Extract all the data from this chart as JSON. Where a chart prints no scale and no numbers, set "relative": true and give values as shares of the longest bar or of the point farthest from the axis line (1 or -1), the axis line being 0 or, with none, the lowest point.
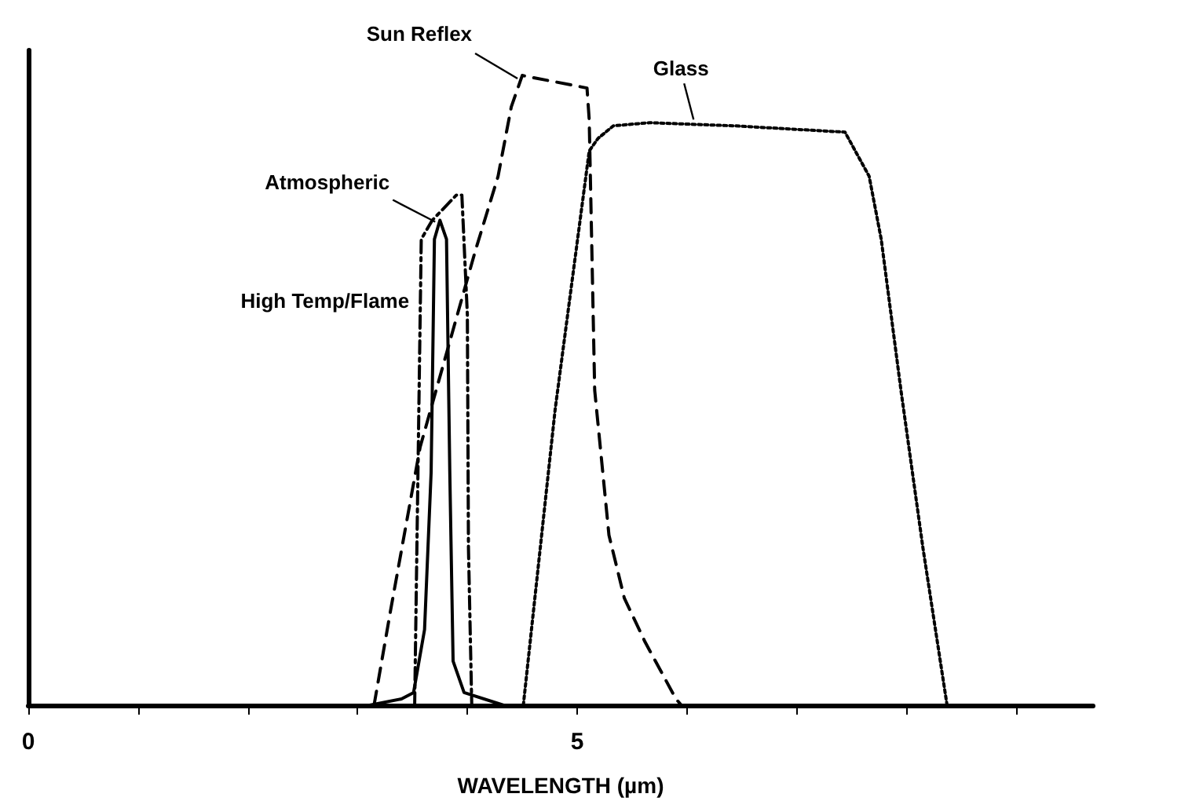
{
  "chart_data": {
    "type": "line",
    "relative": true,
    "xlabel": "WAVELENGTH (µm)",
    "xlim": [
      0,
      9.7
    ],
    "xticks": [
      0,
      {
        "value": 1,
        "label": null
      },
      {
        "value": 2,
        "label": null
      },
      {
        "value": 3,
        "label": null
      },
      {
        "value": 4,
        "label": null
      },
      5,
      {
        "value": 6,
        "label": null
      },
      {
        "value": 7,
        "label": null
      },
      {
        "value": 8,
        "label": null
      },
      {
        "value": 9,
        "label": null
      }
    ],
    "grid": false,
    "legend": false,
    "marker": "none",
    "series": [
      {
        "name": "Sun Reflex",
        "color": "#000000",
        "line_style": "dashed",
        "x": [
          3.15,
          3.3,
          3.57,
          4.07,
          4.28,
          4.4,
          4.5,
          5.09,
          5.11,
          5.16,
          5.29,
          5.43,
          5.62,
          5.9,
          5.95
        ],
        "values": [
          0,
          0.15,
          0.41,
          0.72,
          0.84,
          0.95,
          1.0,
          0.98,
          0.93,
          0.5,
          0.27,
          0.17,
          0.1,
          0.01,
          0
        ]
      },
      {
        "name": "Glass",
        "color": "#000000",
        "line_style": "dotted",
        "x": [
          4.51,
          4.8,
          5.11,
          5.19,
          5.33,
          5.66,
          6.43,
          7.44,
          7.66,
          7.77,
          7.95,
          8.15,
          8.37
        ],
        "values": [
          0,
          0.47,
          0.88,
          0.9,
          0.92,
          0.925,
          0.92,
          0.91,
          0.84,
          0.74,
          0.5,
          0.25,
          0
        ]
      },
      {
        "name": "Atmospheric",
        "color": "#000000",
        "line_style": "solid",
        "x": [
          3.11,
          3.4,
          3.51,
          3.61,
          3.67,
          3.7,
          3.75,
          3.81,
          3.84,
          3.87,
          3.97,
          4.33
        ],
        "values": [
          0,
          0.01,
          0.02,
          0.12,
          0.37,
          0.74,
          0.77,
          0.74,
          0.37,
          0.07,
          0.02,
          0
        ]
      },
      {
        "name": "High Temp/Flame",
        "color": "#000000",
        "line_style": "dashdot",
        "x": [
          3.52,
          3.55,
          3.58,
          3.68,
          3.9,
          3.95,
          4.0,
          4.01,
          4.04
        ],
        "values": [
          0,
          0.37,
          0.74,
          0.77,
          0.81,
          0.81,
          0.62,
          0.25,
          0
        ]
      }
    ]
  }
}
